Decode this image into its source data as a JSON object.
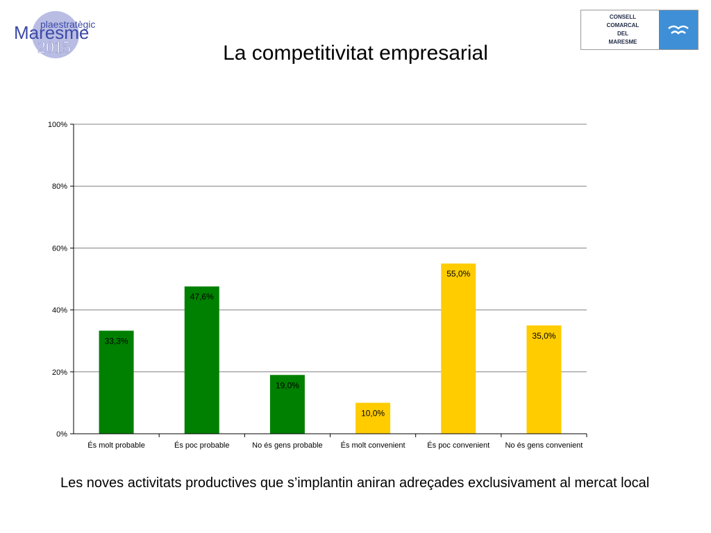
{
  "header": {
    "title": "La competitivitat empresarial",
    "logo_left": {
      "line1": "plaestratègic",
      "line2": "Maresme",
      "line3": "2015"
    },
    "logo_right": {
      "lines": [
        "CONSELL",
        "COMARCAL",
        "DEL",
        "MARESME"
      ]
    }
  },
  "caption": "Les noves activitats productives que s’implantin aniran adreçades exclusivament al mercat local",
  "colors": {
    "green": "#008000",
    "yellow": "#ffcc00",
    "grid": "#808080",
    "axis": "#000000"
  },
  "chart_data": {
    "type": "bar",
    "categories": [
      "És molt probable",
      "És poc probable",
      "No és gens probable",
      "És molt convenient",
      "És poc convenient",
      "No és gens convenient"
    ],
    "values": [
      33.3,
      47.6,
      19.0,
      10.0,
      55.0,
      35.0
    ],
    "value_labels": [
      "33,3%",
      "47,6%",
      "19,0%",
      "10,0%",
      "55,0%",
      "35,0%"
    ],
    "bar_colors": [
      "green",
      "green",
      "green",
      "yellow",
      "yellow",
      "yellow"
    ],
    "ylim": [
      0,
      100
    ],
    "yticks": [
      0,
      20,
      40,
      60,
      80,
      100
    ],
    "ytick_labels": [
      "0%",
      "20%",
      "40%",
      "60%",
      "80%",
      "100%"
    ],
    "grid": true,
    "title": "",
    "xlabel": "",
    "ylabel": ""
  }
}
